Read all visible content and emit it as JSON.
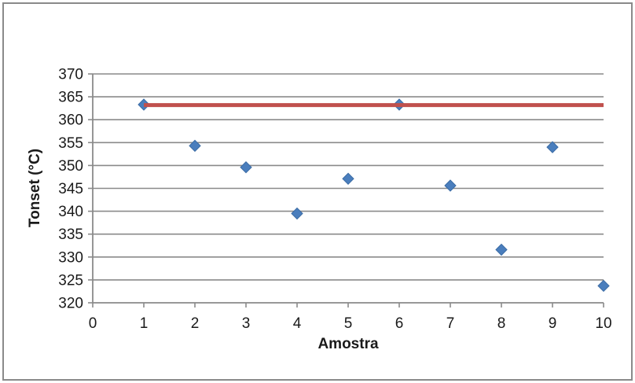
{
  "chart_data": {
    "type": "scatter",
    "title": "",
    "xlabel": "Amostra",
    "ylabel": "Tonset (°C)",
    "xlim": [
      0,
      10
    ],
    "ylim": [
      320,
      370
    ],
    "x_ticks": [
      0,
      1,
      2,
      3,
      4,
      5,
      6,
      7,
      8,
      9,
      10
    ],
    "y_ticks": [
      320,
      325,
      330,
      335,
      340,
      345,
      350,
      355,
      360,
      365,
      370
    ],
    "grid": "horizontal",
    "legend": "none",
    "series": [
      {
        "name": "Tonset",
        "type": "scatter",
        "marker": "diamond",
        "x": [
          1,
          2,
          3,
          4,
          5,
          6,
          7,
          8,
          9,
          10
        ],
        "y": [
          363.3,
          354.3,
          349.6,
          339.5,
          347.1,
          363.3,
          345.6,
          331.6,
          354.0,
          323.7
        ]
      },
      {
        "name": "reference-line",
        "type": "line",
        "x": [
          1,
          10
        ],
        "y": [
          363.2,
          363.2
        ]
      }
    ]
  },
  "colors": {
    "marker_fill": "#4a7ebd",
    "marker_border": "#3b6ca5",
    "reference_line": "#c0504d",
    "grid": "#8a8a8a",
    "axis": "#8a8a8a",
    "frame_border": "#8a8a8a",
    "text": "#1a1a1a"
  }
}
